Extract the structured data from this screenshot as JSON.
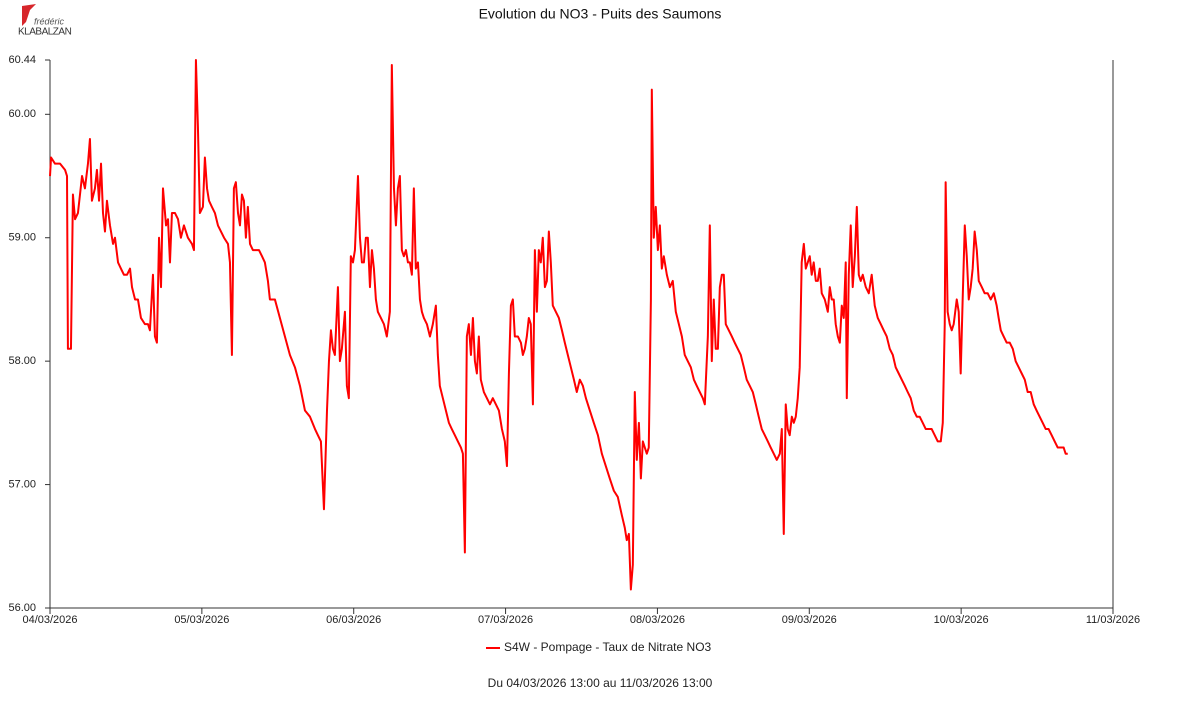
{
  "logo": {
    "line1": "frédéric",
    "line2": "KLABALZAN"
  },
  "chart_data": {
    "type": "line",
    "title": "Evolution du NO3 - Puits des Saumons",
    "caption": "Du 04/03/2026 13:00 au 11/03/2026 13:00",
    "legend": "bottom",
    "grid": false,
    "xlim": [
      0,
      7
    ],
    "xticks": [
      {
        "value": 0,
        "label": "04/03/2026"
      },
      {
        "value": 1,
        "label": "05/03/2026"
      },
      {
        "value": 2,
        "label": "06/03/2026"
      },
      {
        "value": 3,
        "label": "07/03/2026"
      },
      {
        "value": 4,
        "label": "08/03/2026"
      },
      {
        "value": 5,
        "label": "09/03/2026"
      },
      {
        "value": 6,
        "label": "10/03/2026"
      },
      {
        "value": 7,
        "label": "11/03/2026"
      }
    ],
    "ylim": [
      56,
      60.44
    ],
    "yticks": [
      {
        "value": 56,
        "label": "56.00"
      },
      {
        "value": 57,
        "label": "57.00"
      },
      {
        "value": 58,
        "label": "58.00"
      },
      {
        "value": 59,
        "label": "59.00"
      },
      {
        "value": 60,
        "label": "60.00"
      },
      60.44
    ],
    "x": [
      0,
      0.007,
      0.033,
      0.066,
      0.099,
      0.112,
      0.118,
      0.138,
      0.151,
      0.165,
      0.184,
      0.211,
      0.23,
      0.25,
      0.263,
      0.276,
      0.296,
      0.309,
      0.323,
      0.336,
      0.349,
      0.362,
      0.375,
      0.395,
      0.415,
      0.428,
      0.448,
      0.467,
      0.487,
      0.507,
      0.527,
      0.54,
      0.56,
      0.579,
      0.599,
      0.625,
      0.645,
      0.658,
      0.678,
      0.691,
      0.704,
      0.718,
      0.731,
      0.744,
      0.764,
      0.777,
      0.79,
      0.803,
      0.823,
      0.843,
      0.862,
      0.882,
      0.908,
      0.935,
      0.948,
      0.961,
      0.974,
      0.987,
      1.007,
      1.02,
      1.034,
      1.047,
      1.066,
      1.086,
      1.106,
      1.126,
      1.146,
      1.172,
      1.185,
      1.198,
      1.211,
      1.224,
      1.238,
      1.251,
      1.264,
      1.277,
      1.29,
      1.303,
      1.317,
      1.336,
      1.356,
      1.376,
      1.396,
      1.415,
      1.435,
      1.448,
      1.481,
      1.514,
      1.547,
      1.58,
      1.613,
      1.646,
      1.679,
      1.712,
      1.745,
      1.764,
      1.784,
      1.804,
      1.824,
      1.837,
      1.85,
      1.863,
      1.876,
      1.896,
      1.909,
      1.922,
      1.942,
      1.955,
      1.968,
      1.981,
      1.995,
      2.008,
      2.028,
      2.041,
      2.054,
      2.067,
      2.08,
      2.093,
      2.107,
      2.12,
      2.133,
      2.146,
      2.159,
      2.179,
      2.199,
      2.218,
      2.238,
      2.251,
      2.265,
      2.278,
      2.291,
      2.304,
      2.317,
      2.33,
      2.344,
      2.357,
      2.37,
      2.383,
      2.396,
      2.409,
      2.423,
      2.436,
      2.449,
      2.462,
      2.482,
      2.502,
      2.521,
      2.541,
      2.554,
      2.567,
      2.587,
      2.607,
      2.627,
      2.646,
      2.666,
      2.686,
      2.706,
      2.719,
      2.732,
      2.745,
      2.758,
      2.772,
      2.785,
      2.798,
      2.811,
      2.824,
      2.837,
      2.857,
      2.877,
      2.897,
      2.916,
      2.936,
      2.956,
      2.976,
      2.995,
      3.009,
      3.022,
      3.035,
      3.048,
      3.061,
      3.081,
      3.101,
      3.114,
      3.127,
      3.14,
      3.153,
      3.166,
      3.18,
      3.193,
      3.206,
      3.219,
      3.232,
      3.245,
      3.259,
      3.272,
      3.285,
      3.298,
      3.311,
      3.331,
      3.351,
      3.371,
      3.39,
      3.41,
      3.43,
      3.45,
      3.469,
      3.489,
      3.509,
      3.529,
      3.555,
      3.581,
      3.608,
      3.634,
      3.66,
      3.686,
      3.713,
      3.739,
      3.766,
      3.785,
      3.798,
      3.812,
      3.825,
      3.838,
      3.851,
      3.864,
      3.878,
      3.891,
      3.904,
      3.917,
      3.93,
      3.943,
      3.957,
      3.963,
      3.976,
      3.989,
      4.003,
      4.016,
      4.029,
      4.042,
      4.062,
      4.082,
      4.101,
      4.121,
      4.141,
      4.161,
      4.18,
      4.2,
      4.22,
      4.24,
      4.259,
      4.279,
      4.299,
      4.312,
      4.332,
      4.345,
      4.358,
      4.371,
      4.384,
      4.398,
      4.411,
      4.424,
      4.437,
      4.45,
      4.47,
      4.49,
      4.509,
      4.529,
      4.549,
      4.569,
      4.588,
      4.608,
      4.628,
      4.648,
      4.667,
      4.687,
      4.707,
      4.727,
      4.746,
      4.766,
      4.786,
      4.806,
      4.819,
      4.832,
      4.845,
      4.858,
      4.871,
      4.885,
      4.898,
      4.911,
      4.924,
      4.937,
      4.95,
      4.964,
      4.977,
      4.99,
      5.003,
      5.016,
      5.029,
      5.043,
      5.056,
      5.069,
      5.082,
      5.102,
      5.122,
      5.135,
      5.148,
      5.161,
      5.174,
      5.188,
      5.201,
      5.214,
      5.227,
      5.24,
      5.247,
      5.26,
      5.273,
      5.286,
      5.3,
      5.313,
      5.326,
      5.339,
      5.352,
      5.372,
      5.392,
      5.411,
      5.431,
      5.451,
      5.471,
      5.49,
      5.51,
      5.53,
      5.55,
      5.569,
      5.589,
      5.609,
      5.629,
      5.648,
      5.668,
      5.688,
      5.708,
      5.727,
      5.747,
      5.767,
      5.787,
      5.806,
      5.826,
      5.846,
      5.866,
      5.879,
      5.892,
      5.898,
      5.911,
      5.925,
      5.938,
      5.951,
      5.971,
      5.984,
      5.997,
      6.01,
      6.024,
      6.037,
      6.05,
      6.063,
      6.076,
      6.089,
      6.103,
      6.116,
      6.136,
      6.155,
      6.175,
      6.195,
      6.215,
      6.234,
      6.247,
      6.261,
      6.28,
      6.3,
      6.32,
      6.34,
      6.359,
      6.379,
      6.399,
      6.419,
      6.438,
      6.458,
      6.478,
      6.497,
      6.517,
      6.537,
      6.557,
      6.576,
      6.596,
      6.616,
      6.636,
      6.655,
      6.675,
      6.688,
      6.702
    ],
    "series": [
      {
        "name": "S4W - Pompage - Taux de Nitrate NO3",
        "color": "#ff0000",
        "values": [
          59.5,
          59.65,
          59.6,
          59.6,
          59.55,
          59.5,
          58.1,
          58.1,
          59.35,
          59.15,
          59.2,
          59.5,
          59.4,
          59.6,
          59.8,
          59.3,
          59.4,
          59.55,
          59.3,
          59.6,
          59.2,
          59.05,
          59.3,
          59.1,
          58.95,
          59.0,
          58.8,
          58.75,
          58.7,
          58.7,
          58.75,
          58.6,
          58.5,
          58.5,
          58.35,
          58.3,
          58.3,
          58.25,
          58.7,
          58.2,
          58.15,
          59.0,
          58.6,
          59.4,
          59.1,
          59.15,
          58.8,
          59.2,
          59.2,
          59.15,
          59.0,
          59.1,
          59.0,
          58.95,
          58.9,
          60.44,
          59.9,
          59.2,
          59.25,
          59.65,
          59.4,
          59.3,
          59.25,
          59.2,
          59.1,
          59.05,
          59.0,
          58.95,
          58.8,
          58.05,
          59.4,
          59.45,
          59.2,
          59.1,
          59.35,
          59.3,
          59.0,
          59.25,
          58.95,
          58.9,
          58.9,
          58.9,
          58.85,
          58.8,
          58.65,
          58.5,
          58.5,
          58.35,
          58.2,
          58.05,
          57.95,
          57.8,
          57.6,
          57.55,
          57.45,
          57.4,
          57.35,
          56.8,
          57.6,
          58.0,
          58.25,
          58.1,
          58.05,
          58.6,
          58.0,
          58.1,
          58.4,
          57.8,
          57.7,
          58.85,
          58.8,
          58.9,
          59.5,
          59.0,
          58.8,
          58.8,
          59.0,
          59.0,
          58.6,
          58.9,
          58.75,
          58.5,
          58.4,
          58.35,
          58.3,
          58.2,
          58.4,
          60.4,
          59.4,
          59.1,
          59.4,
          59.5,
          58.9,
          58.85,
          58.9,
          58.8,
          58.8,
          58.7,
          59.4,
          58.75,
          58.8,
          58.5,
          58.4,
          58.35,
          58.3,
          58.2,
          58.3,
          58.45,
          58.05,
          57.8,
          57.7,
          57.6,
          57.5,
          57.45,
          57.4,
          57.35,
          57.3,
          57.25,
          56.45,
          58.2,
          58.3,
          58.05,
          58.35,
          58.0,
          57.9,
          58.2,
          57.85,
          57.75,
          57.7,
          57.65,
          57.7,
          57.65,
          57.6,
          57.45,
          57.35,
          57.15,
          57.9,
          58.45,
          58.5,
          58.2,
          58.2,
          58.15,
          58.05,
          58.1,
          58.2,
          58.35,
          58.3,
          57.65,
          58.9,
          58.4,
          58.9,
          58.8,
          59.0,
          58.6,
          58.65,
          59.05,
          58.8,
          58.45,
          58.4,
          58.35,
          58.25,
          58.15,
          58.05,
          57.95,
          57.85,
          57.75,
          57.85,
          57.8,
          57.7,
          57.6,
          57.5,
          57.4,
          57.25,
          57.15,
          57.05,
          56.95,
          56.9,
          56.75,
          56.65,
          56.55,
          56.6,
          56.15,
          56.35,
          57.75,
          57.2,
          57.5,
          57.05,
          57.35,
          57.3,
          57.25,
          57.3,
          58.5,
          60.2,
          59.0,
          59.25,
          58.9,
          59.1,
          58.75,
          58.85,
          58.7,
          58.6,
          58.65,
          58.4,
          58.3,
          58.2,
          58.05,
          58.0,
          57.95,
          57.85,
          57.8,
          57.75,
          57.7,
          57.65,
          58.2,
          59.1,
          58.0,
          58.5,
          58.1,
          58.1,
          58.6,
          58.7,
          58.7,
          58.3,
          58.25,
          58.2,
          58.15,
          58.1,
          58.05,
          57.95,
          57.85,
          57.8,
          57.75,
          57.65,
          57.55,
          57.45,
          57.4,
          57.35,
          57.3,
          57.25,
          57.2,
          57.25,
          57.45,
          56.6,
          57.65,
          57.45,
          57.4,
          57.55,
          57.5,
          57.55,
          57.7,
          57.95,
          58.8,
          58.95,
          58.75,
          58.8,
          58.85,
          58.7,
          58.8,
          58.65,
          58.65,
          58.75,
          58.55,
          58.5,
          58.4,
          58.6,
          58.5,
          58.5,
          58.3,
          58.2,
          58.15,
          58.45,
          58.35,
          58.8,
          57.7,
          58.7,
          59.1,
          58.6,
          58.85,
          59.25,
          58.7,
          58.65,
          58.7,
          58.6,
          58.55,
          58.7,
          58.45,
          58.35,
          58.3,
          58.25,
          58.2,
          58.1,
          58.05,
          57.95,
          57.9,
          57.85,
          57.8,
          57.75,
          57.7,
          57.6,
          57.55,
          57.55,
          57.5,
          57.45,
          57.45,
          57.45,
          57.4,
          57.35,
          57.35,
          57.5,
          58.3,
          59.45,
          58.4,
          58.3,
          58.25,
          58.3,
          58.5,
          58.4,
          57.9,
          58.5,
          59.1,
          58.85,
          58.5,
          58.6,
          58.75,
          59.05,
          58.9,
          58.65,
          58.6,
          58.55,
          58.55,
          58.5,
          58.55,
          58.45,
          58.35,
          58.25,
          58.2,
          58.15,
          58.15,
          58.1,
          58.0,
          57.95,
          57.9,
          57.85,
          57.75,
          57.75,
          57.65,
          57.6,
          57.55,
          57.5,
          57.45,
          57.45,
          57.4,
          57.35,
          57.3,
          57.3,
          57.3,
          57.25,
          57.25
        ]
      }
    ]
  }
}
